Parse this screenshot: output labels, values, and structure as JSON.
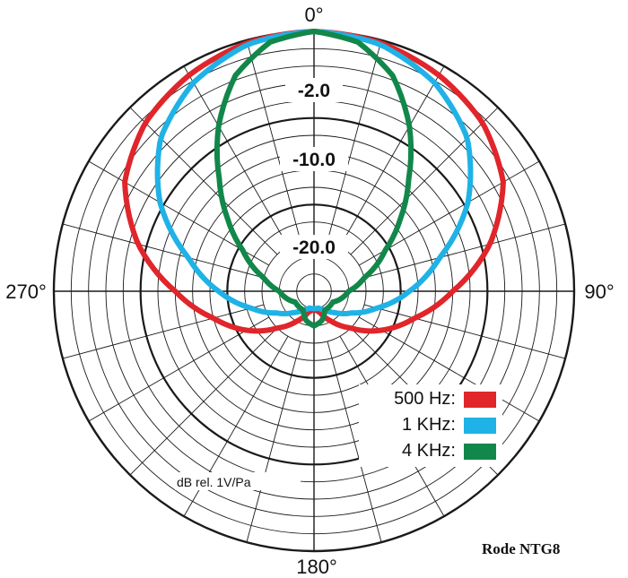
{
  "chart_data": {
    "type": "polar-line",
    "angle_labels": [
      "0°",
      "90°",
      "180°",
      "270°"
    ],
    "ring_labels": [
      "-2.0",
      "-10.0",
      "-20.0"
    ],
    "radial_unit_label": "dB rel. 1V/Pa",
    "caption": "Rode NTG8",
    "angle_step_deg": 15,
    "series": [
      {
        "name": "500 Hz:",
        "color": "#e0252b",
        "angles_deg": [
          0,
          15,
          30,
          45,
          60,
          75,
          90,
          105,
          120,
          135,
          150,
          165,
          180
        ],
        "level_db": [
          0,
          -0.3,
          -1.2,
          -2.5,
          -4.8,
          -9,
          -14,
          -18,
          -21,
          -24,
          -26,
          -27.5,
          -28
        ]
      },
      {
        "name": "1 KHz:",
        "color": "#1fb2e6",
        "angles_deg": [
          0,
          15,
          30,
          45,
          60,
          75,
          90,
          105,
          120,
          135,
          150,
          165,
          180
        ],
        "level_db": [
          0,
          -0.5,
          -2.2,
          -5,
          -9.5,
          -15,
          -19,
          -22.5,
          -25,
          -26.5,
          -27.5,
          -28,
          -28
        ]
      },
      {
        "name": "4 KHz:",
        "color": "#12874a",
        "angles_deg": [
          0,
          10,
          20,
          30,
          40,
          50,
          60,
          75,
          90,
          120,
          150,
          165,
          180
        ],
        "level_db": [
          0,
          -0.8,
          -3.5,
          -8,
          -13,
          -17,
          -20.5,
          -24,
          -26,
          -27.5,
          -27.5,
          -26.5,
          -26
        ]
      }
    ]
  }
}
